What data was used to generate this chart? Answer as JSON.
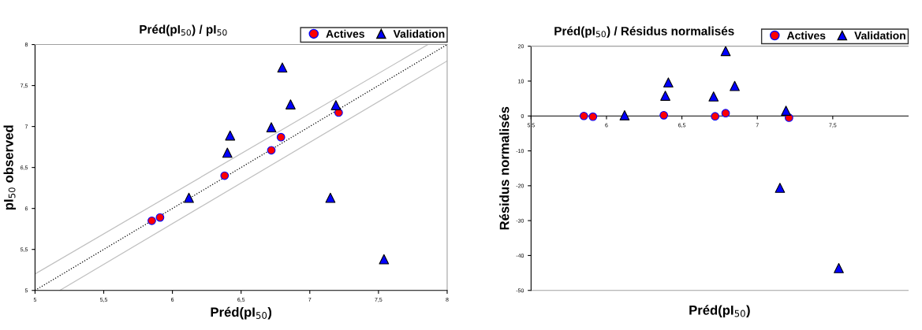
{
  "chart_data": [
    {
      "type": "scatter",
      "title": "Préd(pI$_{50}$) / pI$_{50}$",
      "xlabel": "Préd(pI$_{50}$)",
      "ylabel": "pI$_{50}$ observed",
      "xlim": [
        5,
        8
      ],
      "ylim": [
        5,
        8
      ],
      "xticks": [
        5,
        {
          "value": 5.5,
          "label": "5,5"
        },
        6,
        {
          "value": 6.5,
          "label": "6,5"
        },
        7,
        {
          "value": 7.5,
          "label": "7,5"
        },
        8
      ],
      "yticks": [
        5,
        {
          "value": 5.5,
          "label": "5,5"
        },
        6,
        {
          "value": 6.5,
          "label": "6,5"
        },
        7,
        {
          "value": 7.5,
          "label": "7,5"
        },
        8
      ],
      "grid": false,
      "legend": "top right",
      "series": [
        {
          "type": "line",
          "color": "#c0c0c0",
          "line_style": "solid",
          "marker": "none",
          "x": [
            5,
            7.86
          ],
          "values": [
            5.2,
            8
          ]
        },
        {
          "type": "line",
          "color": "#c0c0c0",
          "line_style": "solid",
          "marker": "none",
          "x": [
            5.18,
            8
          ],
          "values": [
            5,
            7.8
          ]
        },
        {
          "type": "line",
          "color": "#000000",
          "line_style": "dotted",
          "marker": "none",
          "x": [
            5,
            8
          ],
          "values": [
            5,
            8
          ]
        },
        {
          "name": "Actives",
          "color": "#ff0000",
          "marker": "circle",
          "x": [
            5.85,
            5.91,
            6.38,
            6.72,
            6.79,
            7.21
          ],
          "values": [
            5.85,
            5.89,
            6.4,
            6.71,
            6.87,
            7.17
          ]
        },
        {
          "name": "Validation",
          "color": "#0000ff",
          "marker": "triangle",
          "x": [
            6.12,
            6.4,
            6.42,
            6.72,
            6.8,
            6.86,
            7.19,
            7.15,
            7.54
          ],
          "values": [
            6.13,
            6.68,
            6.89,
            6.99,
            7.72,
            7.27,
            7.26,
            6.13,
            5.38
          ]
        }
      ]
    },
    {
      "type": "scatter",
      "title": "Préd(pI$_{50}$) / Résidus normalisés",
      "xlabel": "Préd(pI$_{50}$)",
      "ylabel": "Résidus normalisés",
      "xlim": [
        5.5,
        8
      ],
      "ylim": [
        -50,
        20
      ],
      "xticks": [
        {
          "value": 5.5,
          "label": "5,5"
        },
        6,
        {
          "value": 6.5,
          "label": "6,5"
        },
        7,
        {
          "value": 7.5,
          "label": "7,5"
        }
      ],
      "yticks": [
        -50,
        -40,
        -30,
        -20,
        -10,
        0,
        10,
        20
      ],
      "grid": false,
      "legend": "top right",
      "series": [
        {
          "name": "Actives",
          "color": "#ff0000",
          "marker": "circle",
          "x": [
            5.85,
            5.91,
            6.38,
            6.72,
            6.79,
            7.21
          ],
          "values": [
            0,
            -0.2,
            0.2,
            -0.1,
            0.8,
            -0.5
          ]
        },
        {
          "name": "Validation",
          "color": "#0000ff",
          "marker": "triangle",
          "x": [
            6.12,
            6.39,
            6.41,
            6.71,
            6.79,
            6.85,
            7.19,
            7.15,
            7.54
          ],
          "values": [
            0.2,
            5.8,
            9.6,
            5.6,
            18.6,
            8.6,
            1.5,
            -20.6,
            -43.6
          ]
        }
      ]
    }
  ]
}
